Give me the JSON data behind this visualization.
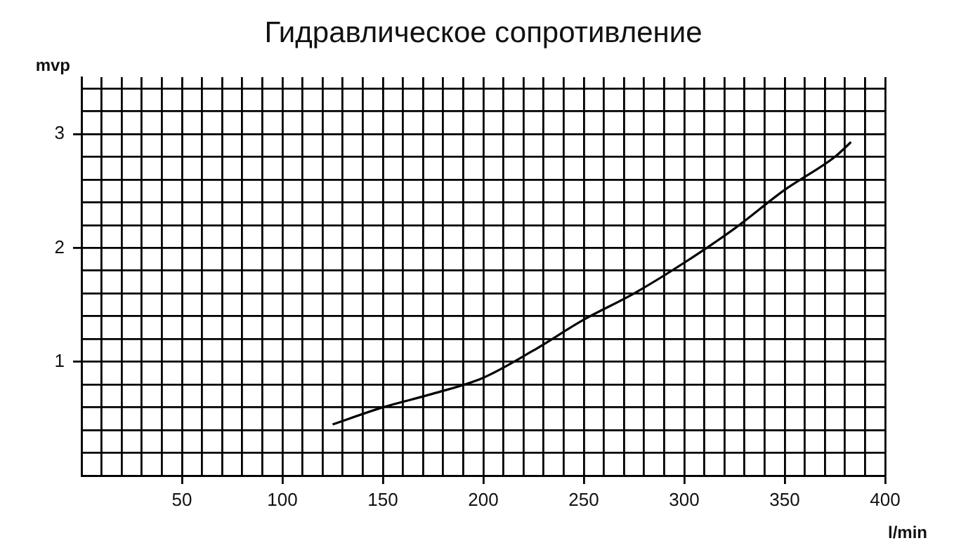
{
  "chart_data": {
    "type": "line",
    "title": "Гидравлическое сопротивление",
    "xlabel": "l/min",
    "ylabel": "mvp",
    "x": [
      125,
      150,
      175,
      200,
      225,
      250,
      275,
      300,
      325,
      350,
      375,
      383
    ],
    "series": [
      {
        "color": "#000000",
        "values": [
          0.45,
          0.6,
          0.72,
          0.86,
          1.1,
          1.37,
          1.6,
          1.87,
          2.17,
          2.51,
          2.8,
          2.93
        ]
      }
    ],
    "xlim": [
      0,
      400
    ],
    "xticks": [
      {
        "value": 0,
        "label": null
      },
      {
        "value": 10,
        "label": null
      },
      {
        "value": 20,
        "label": null
      },
      {
        "value": 30,
        "label": null
      },
      {
        "value": 40,
        "label": null
      },
      50,
      {
        "value": 60,
        "label": null
      },
      {
        "value": 70,
        "label": null
      },
      {
        "value": 80,
        "label": null
      },
      {
        "value": 90,
        "label": null
      },
      100,
      {
        "value": 110,
        "label": null
      },
      {
        "value": 120,
        "label": null
      },
      {
        "value": 130,
        "label": null
      },
      {
        "value": 140,
        "label": null
      },
      150,
      {
        "value": 160,
        "label": null
      },
      {
        "value": 170,
        "label": null
      },
      {
        "value": 180,
        "label": null
      },
      {
        "value": 190,
        "label": null
      },
      200,
      {
        "value": 210,
        "label": null
      },
      {
        "value": 220,
        "label": null
      },
      {
        "value": 230,
        "label": null
      },
      {
        "value": 240,
        "label": null
      },
      250,
      {
        "value": 260,
        "label": null
      },
      {
        "value": 270,
        "label": null
      },
      {
        "value": 280,
        "label": null
      },
      {
        "value": 290,
        "label": null
      },
      300,
      {
        "value": 310,
        "label": null
      },
      {
        "value": 320,
        "label": null
      },
      {
        "value": 330,
        "label": null
      },
      {
        "value": 340,
        "label": null
      },
      350,
      {
        "value": 360,
        "label": null
      },
      {
        "value": 370,
        "label": null
      },
      {
        "value": 380,
        "label": null
      },
      {
        "value": 390,
        "label": null
      },
      400
    ],
    "ylim": [
      0,
      3.5
    ],
    "yticks": [
      {
        "value": 0,
        "label": null
      },
      {
        "value": 0.2,
        "label": null
      },
      {
        "value": 0.4,
        "label": null
      },
      {
        "value": 0.6,
        "label": null
      },
      {
        "value": 0.8,
        "label": null
      },
      1,
      {
        "value": 1.2,
        "label": null
      },
      {
        "value": 1.4,
        "label": null
      },
      {
        "value": 1.6,
        "label": null
      },
      {
        "value": 1.8,
        "label": null
      },
      2,
      {
        "value": 2.2,
        "label": null
      },
      {
        "value": 2.4,
        "label": null
      },
      {
        "value": 2.6,
        "label": null
      },
      {
        "value": 2.8,
        "label": null
      },
      3,
      {
        "value": 3.2,
        "label": null
      },
      {
        "value": 3.4,
        "label": null
      }
    ],
    "grid": true,
    "legend": false,
    "marker": "none",
    "line_style": "solid"
  }
}
